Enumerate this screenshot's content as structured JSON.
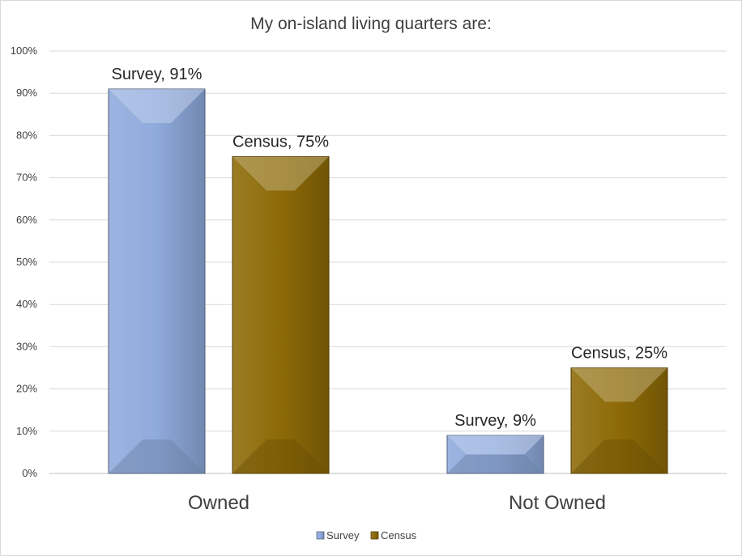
{
  "chart_data": {
    "type": "bar",
    "title": "My on-island living quarters are:",
    "categories": [
      "Owned",
      "Not Owned"
    ],
    "series": [
      {
        "name": "Survey",
        "values": [
          91,
          9
        ],
        "color": "#8faadc",
        "labels": [
          "Survey, 91%",
          "Survey, 9%"
        ]
      },
      {
        "name": "Census",
        "values": [
          75,
          25
        ],
        "color": "#8d6a07",
        "labels": [
          "Census, 75%",
          "Census, 25%"
        ]
      }
    ],
    "y_ticks": [
      "0%",
      "10%",
      "20%",
      "30%",
      "40%",
      "50%",
      "60%",
      "70%",
      "80%",
      "90%",
      "100%"
    ],
    "ylim": [
      0,
      100
    ],
    "grid": true,
    "legend": {
      "position": "bottom",
      "items": [
        "Survey",
        "Census"
      ]
    }
  }
}
